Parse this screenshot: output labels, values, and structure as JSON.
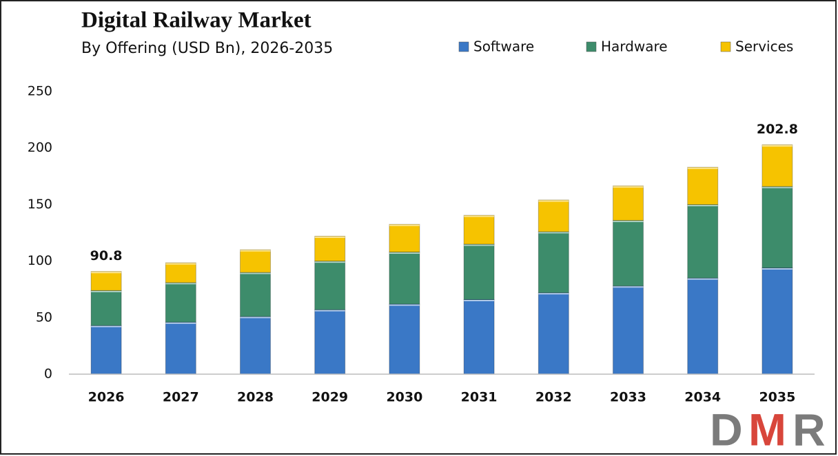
{
  "chart_data": {
    "type": "stacked_bar",
    "title": "Digital Railway Market",
    "subtitle": "By Offering (USD Bn), 2026-2035",
    "categories": [
      "2026",
      "2027",
      "2028",
      "2029",
      "2030",
      "2031",
      "2032",
      "2033",
      "2034",
      "2035"
    ],
    "series": [
      {
        "name": "Software",
        "color": "#3a78c6",
        "values": [
          43,
          46,
          51,
          57,
          62,
          66,
          72,
          78,
          85,
          94
        ]
      },
      {
        "name": "Hardware",
        "color": "#3d8c6b",
        "values": [
          31,
          35,
          39,
          43,
          46,
          49,
          54,
          58,
          65,
          72
        ]
      },
      {
        "name": "Services",
        "color": "#f6c300",
        "values": [
          16.8,
          17.5,
          20,
          22,
          24.5,
          25.5,
          28,
          30.5,
          33,
          36.8
        ]
      }
    ],
    "totals": [
      90.8,
      null,
      null,
      null,
      null,
      null,
      null,
      null,
      null,
      202.8
    ],
    "ylim": [
      0,
      250
    ],
    "yticks": [
      0,
      50,
      100,
      150,
      200,
      250
    ],
    "grid": false,
    "legend": "top-right",
    "logo": [
      "D",
      "M",
      "R"
    ]
  }
}
